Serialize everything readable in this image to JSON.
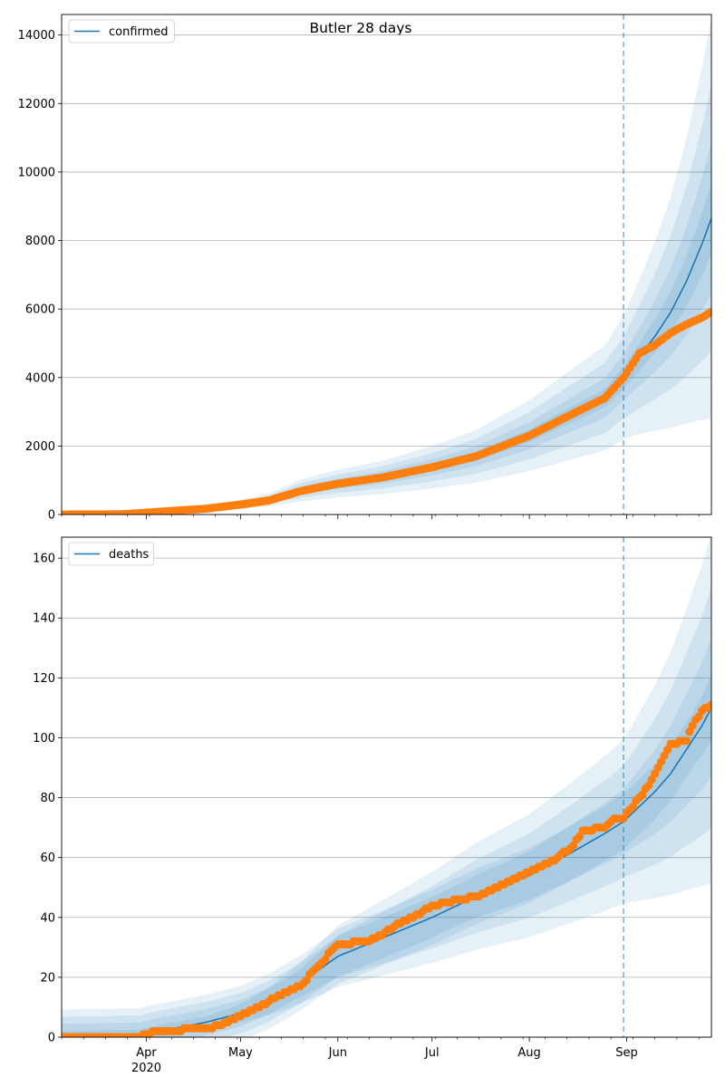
{
  "figure": {
    "title": "Butler 28 days"
  },
  "colors": {
    "model_line": "#1f77b4",
    "band": "#1f77b4",
    "observed": "#ff7f0e",
    "grid": "#b0b0b0",
    "forecast_start_line": "#1f77b4"
  },
  "chart_data": [
    {
      "type": "line",
      "name_in_legend": "confirmed",
      "legend": [
        "confirmed"
      ],
      "legend_position": "top-left",
      "grid": "y",
      "x_range": [
        "2020-03-05",
        "2020-09-28"
      ],
      "ylim": [
        0,
        14600
      ],
      "y_ticks": [
        0,
        2000,
        4000,
        6000,
        8000,
        10000,
        12000,
        14000
      ],
      "forecast_start": "2020-08-31",
      "model_median_knots": [
        [
          "2020-03-05",
          0
        ],
        [
          "2020-03-25",
          15
        ],
        [
          "2020-04-05",
          80
        ],
        [
          "2020-04-20",
          180
        ],
        [
          "2020-05-01",
          300
        ],
        [
          "2020-05-10",
          420
        ],
        [
          "2020-05-20",
          700
        ],
        [
          "2020-06-01",
          900
        ],
        [
          "2020-06-15",
          1080
        ],
        [
          "2020-07-01",
          1380
        ],
        [
          "2020-07-15",
          1700
        ],
        [
          "2020-08-01",
          2300
        ],
        [
          "2020-08-15",
          2950
        ],
        [
          "2020-08-25",
          3400
        ],
        [
          "2020-08-31",
          4000
        ],
        [
          "2020-09-05",
          4600
        ],
        [
          "2020-09-10",
          5200
        ],
        [
          "2020-09-15",
          5900
        ],
        [
          "2020-09-20",
          6800
        ],
        [
          "2020-09-25",
          7900
        ],
        [
          "2020-09-28",
          8650
        ]
      ],
      "band_relative_width": [
        0.08,
        0.17,
        0.3,
        0.45
      ],
      "band_growth_after_forecast": 1.5,
      "observed_knots": [
        [
          "2020-03-05",
          0
        ],
        [
          "2020-03-25",
          10
        ],
        [
          "2020-04-05",
          80
        ],
        [
          "2020-04-20",
          170
        ],
        [
          "2020-05-01",
          290
        ],
        [
          "2020-05-10",
          410
        ],
        [
          "2020-05-20",
          680
        ],
        [
          "2020-06-01",
          900
        ],
        [
          "2020-06-15",
          1080
        ],
        [
          "2020-07-01",
          1380
        ],
        [
          "2020-07-15",
          1700
        ],
        [
          "2020-08-01",
          2300
        ],
        [
          "2020-08-15",
          2950
        ],
        [
          "2020-08-25",
          3400
        ],
        [
          "2020-08-31",
          4000
        ],
        [
          "2020-09-05",
          4700
        ],
        [
          "2020-09-10",
          4950
        ],
        [
          "2020-09-15",
          5300
        ],
        [
          "2020-09-20",
          5550
        ],
        [
          "2020-09-25",
          5750
        ],
        [
          "2020-09-28",
          5920
        ]
      ]
    },
    {
      "type": "line",
      "legend": [
        "deaths"
      ],
      "legend_position": "top-left",
      "grid": "y",
      "x_range": [
        "2020-03-05",
        "2020-09-28"
      ],
      "ylim": [
        0,
        167
      ],
      "y_ticks": [
        0,
        20,
        40,
        60,
        80,
        100,
        120,
        140,
        160
      ],
      "forecast_start": "2020-08-31",
      "x_tick_labels": [
        {
          "date": "2020-04-01",
          "label": "Apr",
          "sublabel": "2020"
        },
        {
          "date": "2020-05-01",
          "label": "May"
        },
        {
          "date": "2020-06-01",
          "label": "Jun"
        },
        {
          "date": "2020-07-01",
          "label": "Jul"
        },
        {
          "date": "2020-08-01",
          "label": "Aug"
        },
        {
          "date": "2020-09-01",
          "label": "Sep"
        }
      ],
      "model_median_knots": [
        [
          "2020-03-05",
          0
        ],
        [
          "2020-03-30",
          0.5
        ],
        [
          "2020-04-05",
          2
        ],
        [
          "2020-04-20",
          5
        ],
        [
          "2020-05-01",
          8
        ],
        [
          "2020-05-10",
          12
        ],
        [
          "2020-05-20",
          18
        ],
        [
          "2020-06-01",
          27
        ],
        [
          "2020-06-15",
          33
        ],
        [
          "2020-07-01",
          40
        ],
        [
          "2020-07-15",
          47
        ],
        [
          "2020-08-01",
          54
        ],
        [
          "2020-08-15",
          62
        ],
        [
          "2020-08-25",
          68
        ],
        [
          "2020-08-31",
          72
        ],
        [
          "2020-09-05",
          77
        ],
        [
          "2020-09-10",
          82
        ],
        [
          "2020-09-15",
          88
        ],
        [
          "2020-09-20",
          96
        ],
        [
          "2020-09-25",
          104
        ],
        [
          "2020-09-28",
          110
        ]
      ],
      "band_relative_width": [
        0.07,
        0.15,
        0.26,
        0.38
      ],
      "band_min_width": 2,
      "band_growth_after_forecast": 1.4,
      "observed_knots": [
        [
          "2020-03-05",
          0
        ],
        [
          "2020-03-30",
          0
        ],
        [
          "2020-04-01",
          1
        ],
        [
          "2020-04-05",
          2
        ],
        [
          "2020-04-20",
          3
        ],
        [
          "2020-04-25",
          4
        ],
        [
          "2020-05-01",
          7
        ],
        [
          "2020-05-10",
          12
        ],
        [
          "2020-05-15",
          15
        ],
        [
          "2020-05-20",
          17
        ],
        [
          "2020-05-25",
          23
        ],
        [
          "2020-06-01",
          31
        ],
        [
          "2020-06-10",
          32
        ],
        [
          "2020-06-15",
          34
        ],
        [
          "2020-06-20",
          38
        ],
        [
          "2020-06-25",
          40
        ],
        [
          "2020-07-01",
          44
        ],
        [
          "2020-07-10",
          46
        ],
        [
          "2020-07-15",
          47
        ],
        [
          "2020-07-20",
          49
        ],
        [
          "2020-08-01",
          55
        ],
        [
          "2020-08-10",
          60
        ],
        [
          "2020-08-15",
          64
        ],
        [
          "2020-08-18",
          69
        ],
        [
          "2020-08-25",
          70
        ],
        [
          "2020-08-28",
          73
        ],
        [
          "2020-08-31",
          73
        ],
        [
          "2020-09-02",
          76
        ],
        [
          "2020-09-05",
          80
        ],
        [
          "2020-09-08",
          84
        ],
        [
          "2020-09-12",
          92
        ],
        [
          "2020-09-15",
          98
        ],
        [
          "2020-09-20",
          99
        ],
        [
          "2020-09-22",
          104
        ],
        [
          "2020-09-25",
          109
        ],
        [
          "2020-09-28",
          111
        ]
      ]
    }
  ]
}
